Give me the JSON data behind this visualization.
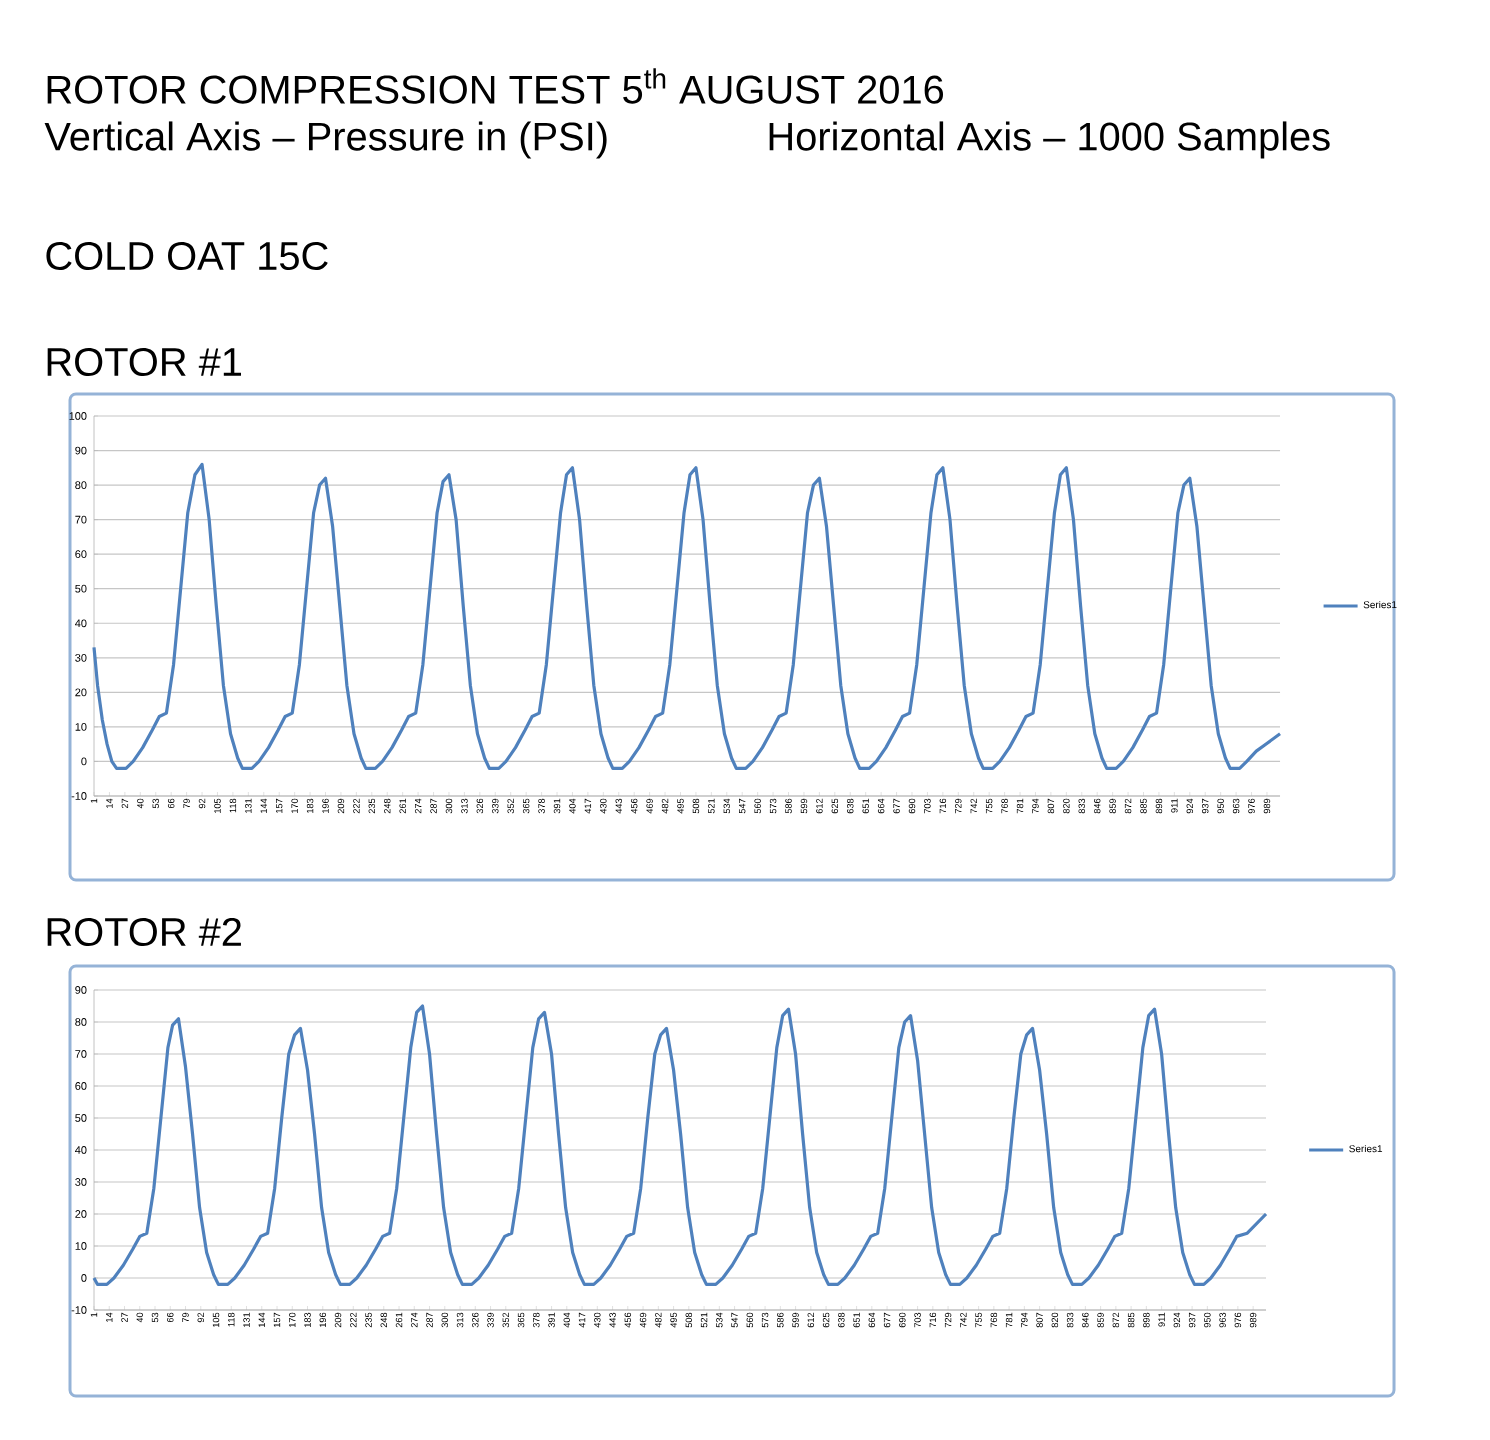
{
  "chart_data": [
    {
      "type": "line",
      "title": "ROTOR #1",
      "annotations": [
        "ROTOR COMPRESSION TEST 5$^{th}$ AUGUST 2016",
        "Vertical Axis – Pressure in (PSI)",
        "Horizontal Axis – 1000 Samples",
        "COLD OAT 15C"
      ],
      "x": [
        1,
        4,
        8,
        12,
        16,
        20,
        28,
        34,
        42,
        50,
        56,
        62,
        68,
        74,
        80,
        86,
        92,
        98,
        104,
        110,
        116,
        122,
        126,
        134,
        140,
        148,
        156,
        162,
        168,
        174,
        180,
        186,
        191,
        196,
        202,
        208,
        214,
        220,
        226,
        230,
        238,
        244,
        252,
        260,
        266,
        272,
        278,
        284,
        290,
        295,
        300,
        306,
        312,
        318,
        324,
        330,
        334,
        342,
        348,
        356,
        364,
        370,
        376,
        382,
        388,
        394,
        399,
        404,
        410,
        416,
        422,
        428,
        434,
        438,
        446,
        452,
        460,
        468,
        474,
        480,
        486,
        492,
        498,
        503,
        508,
        514,
        520,
        526,
        532,
        538,
        542,
        550,
        556,
        564,
        572,
        578,
        584,
        590,
        596,
        602,
        607,
        612,
        618,
        624,
        630,
        636,
        642,
        646,
        654,
        660,
        668,
        676,
        682,
        688,
        694,
        700,
        706,
        711,
        716,
        722,
        728,
        734,
        740,
        746,
        750,
        758,
        764,
        772,
        780,
        786,
        792,
        798,
        804,
        810,
        815,
        820,
        826,
        832,
        838,
        844,
        850,
        854,
        862,
        868,
        876,
        884,
        890,
        896,
        902,
        908,
        914,
        919,
        924,
        930,
        936,
        942,
        948,
        954,
        958,
        966,
        972,
        980,
        988,
        1000
      ],
      "series": [
        {
          "name": "Series1",
          "color": "#4f81bd",
          "values": [
            33,
            22,
            12,
            5,
            0,
            -2,
            -2,
            0,
            4,
            9,
            13,
            14,
            28,
            50,
            72,
            83,
            86,
            70,
            45,
            22,
            8,
            1,
            -2,
            -2,
            0,
            4,
            9,
            13,
            14,
            28,
            50,
            72,
            80,
            82,
            68,
            45,
            22,
            8,
            1,
            -2,
            -2,
            0,
            4,
            9,
            13,
            14,
            28,
            50,
            72,
            81,
            83,
            70,
            45,
            22,
            8,
            1,
            -2,
            -2,
            0,
            4,
            9,
            13,
            14,
            28,
            50,
            72,
            83,
            85,
            70,
            45,
            22,
            8,
            1,
            -2,
            -2,
            0,
            4,
            9,
            13,
            14,
            28,
            50,
            72,
            83,
            85,
            70,
            45,
            22,
            8,
            1,
            -2,
            -2,
            0,
            4,
            9,
            13,
            14,
            28,
            50,
            72,
            80,
            82,
            68,
            45,
            22,
            8,
            1,
            -2,
            -2,
            0,
            4,
            9,
            13,
            14,
            28,
            50,
            72,
            83,
            85,
            70,
            45,
            22,
            8,
            1,
            -2,
            -2,
            0,
            4,
            9,
            13,
            14,
            28,
            50,
            72,
            83,
            85,
            70,
            45,
            22,
            8,
            1,
            -2,
            -2,
            0,
            4,
            9,
            13,
            14,
            28,
            50,
            72,
            80,
            82,
            68,
            45,
            22,
            8,
            1,
            -2,
            -2,
            0,
            3,
            5,
            8
          ]
        }
      ],
      "xlim": [
        1,
        1000
      ],
      "ylim": [
        -10,
        100
      ],
      "xticks": [
        1,
        14,
        27,
        40,
        53,
        66,
        79,
        92,
        105,
        118,
        131,
        144,
        157,
        170,
        183,
        196,
        209,
        222,
        235,
        248,
        261,
        274,
        287,
        300,
        313,
        326,
        339,
        352,
        365,
        378,
        391,
        404,
        417,
        430,
        443,
        456,
        469,
        482,
        495,
        508,
        521,
        534,
        547,
        560,
        573,
        586,
        599,
        612,
        625,
        638,
        651,
        664,
        677,
        690,
        703,
        716,
        729,
        742,
        755,
        768,
        781,
        794,
        807,
        820,
        833,
        846,
        859,
        872,
        885,
        898,
        911,
        924,
        937,
        950,
        963,
        976,
        989
      ],
      "yticks": [
        -10,
        0,
        10,
        20,
        30,
        40,
        50,
        60,
        70,
        80,
        90,
        100
      ],
      "grid": "y",
      "legend": "right"
    },
    {
      "type": "line",
      "title": "ROTOR #2",
      "x": [
        1,
        4,
        12,
        18,
        26,
        34,
        40,
        46,
        52,
        58,
        64,
        68,
        73,
        79,
        85,
        91,
        97,
        103,
        107,
        115,
        121,
        129,
        137,
        143,
        149,
        155,
        161,
        167,
        172,
        177,
        183,
        189,
        195,
        201,
        207,
        211,
        219,
        225,
        233,
        241,
        247,
        253,
        259,
        265,
        271,
        276,
        281,
        287,
        293,
        299,
        305,
        311,
        315,
        323,
        329,
        337,
        345,
        351,
        357,
        363,
        369,
        375,
        380,
        385,
        391,
        397,
        403,
        409,
        415,
        419,
        427,
        433,
        441,
        449,
        455,
        461,
        467,
        473,
        479,
        484,
        489,
        495,
        501,
        507,
        513,
        519,
        523,
        531,
        537,
        545,
        553,
        559,
        565,
        571,
        577,
        583,
        588,
        593,
        599,
        605,
        611,
        617,
        623,
        627,
        635,
        641,
        649,
        657,
        663,
        669,
        675,
        681,
        687,
        692,
        697,
        703,
        709,
        715,
        721,
        727,
        731,
        739,
        745,
        753,
        761,
        767,
        773,
        779,
        785,
        791,
        796,
        801,
        807,
        813,
        819,
        825,
        831,
        835,
        843,
        849,
        857,
        865,
        871,
        877,
        883,
        889,
        895,
        900,
        905,
        911,
        917,
        923,
        929,
        935,
        939,
        947,
        953,
        961,
        969,
        975,
        984,
        1000
      ],
      "series": [
        {
          "name": "Series1",
          "color": "#4f81bd",
          "values": [
            0,
            -2,
            -2,
            0,
            4,
            9,
            13,
            14,
            28,
            50,
            72,
            79,
            81,
            66,
            45,
            22,
            8,
            1,
            -2,
            -2,
            0,
            4,
            9,
            13,
            14,
            28,
            50,
            70,
            76,
            78,
            65,
            45,
            22,
            8,
            1,
            -2,
            -2,
            0,
            4,
            9,
            13,
            14,
            28,
            50,
            72,
            83,
            85,
            70,
            45,
            22,
            8,
            1,
            -2,
            -2,
            0,
            4,
            9,
            13,
            14,
            28,
            50,
            72,
            81,
            83,
            70,
            45,
            22,
            8,
            1,
            -2,
            -2,
            0,
            4,
            9,
            13,
            14,
            28,
            50,
            70,
            76,
            78,
            65,
            45,
            22,
            8,
            1,
            -2,
            -2,
            0,
            4,
            9,
            13,
            14,
            28,
            50,
            72,
            82,
            84,
            70,
            45,
            22,
            8,
            1,
            -2,
            -2,
            0,
            4,
            9,
            13,
            14,
            28,
            50,
            72,
            80,
            82,
            68,
            45,
            22,
            8,
            1,
            -2,
            -2,
            0,
            4,
            9,
            13,
            14,
            28,
            50,
            70,
            76,
            78,
            65,
            45,
            22,
            8,
            1,
            -2,
            -2,
            0,
            4,
            9,
            13,
            14,
            28,
            50,
            72,
            82,
            84,
            70,
            45,
            22,
            8,
            1,
            -2,
            -2,
            0,
            4,
            9,
            13,
            14,
            20
          ]
        }
      ],
      "xlim": [
        1,
        1000
      ],
      "ylim": [
        -10,
        90
      ],
      "xticks": [
        1,
        14,
        27,
        40,
        53,
        66,
        79,
        92,
        105,
        118,
        131,
        144,
        157,
        170,
        183,
        196,
        209,
        222,
        235,
        248,
        261,
        274,
        287,
        300,
        313,
        326,
        339,
        352,
        365,
        378,
        391,
        404,
        417,
        430,
        443,
        456,
        469,
        482,
        495,
        508,
        521,
        534,
        547,
        560,
        573,
        586,
        599,
        612,
        625,
        638,
        651,
        664,
        677,
        690,
        703,
        716,
        729,
        742,
        755,
        768,
        781,
        794,
        807,
        820,
        833,
        846,
        859,
        872,
        885,
        898,
        911,
        924,
        937,
        950,
        963,
        976,
        989
      ],
      "yticks": [
        -10,
        0,
        10,
        20,
        30,
        40,
        50,
        60,
        70,
        80,
        90
      ],
      "grid": "y",
      "legend": "right"
    }
  ]
}
